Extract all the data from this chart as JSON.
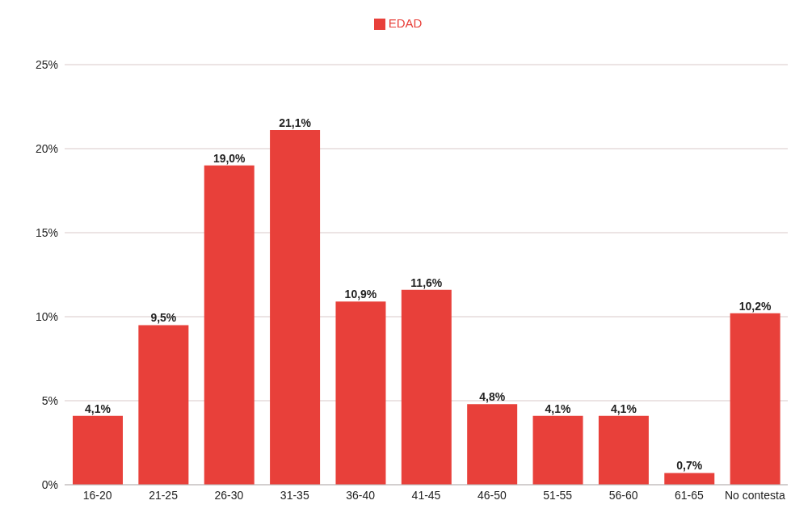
{
  "chart_data": {
    "type": "bar",
    "categories": [
      "16-20",
      "21-25",
      "26-30",
      "31-35",
      "36-40",
      "41-45",
      "46-50",
      "51-55",
      "56-60",
      "61-65",
      "No contesta"
    ],
    "series": [
      {
        "name": "EDAD",
        "color": "#e8403a",
        "values": [
          4.1,
          9.5,
          19.0,
          21.1,
          10.9,
          11.6,
          4.8,
          4.1,
          4.1,
          0.7,
          10.2
        ],
        "value_labels": [
          "4,1%",
          "9,5%",
          "19,0%",
          "21,1%",
          "10,9%",
          "11,6%",
          "4,8%",
          "4,1%",
          "4,1%",
          "0,7%",
          "10,2%"
        ]
      }
    ],
    "ylim": [
      0,
      25
    ],
    "yticks": [
      {
        "value": 0,
        "label": "0%"
      },
      {
        "value": 5,
        "label": "5%"
      },
      {
        "value": 10,
        "label": "10%"
      },
      {
        "value": 15,
        "label": "15%"
      },
      {
        "value": 20,
        "label": "20%"
      },
      {
        "value": 25,
        "label": "25%"
      }
    ],
    "grid": "y",
    "legend": "top"
  }
}
